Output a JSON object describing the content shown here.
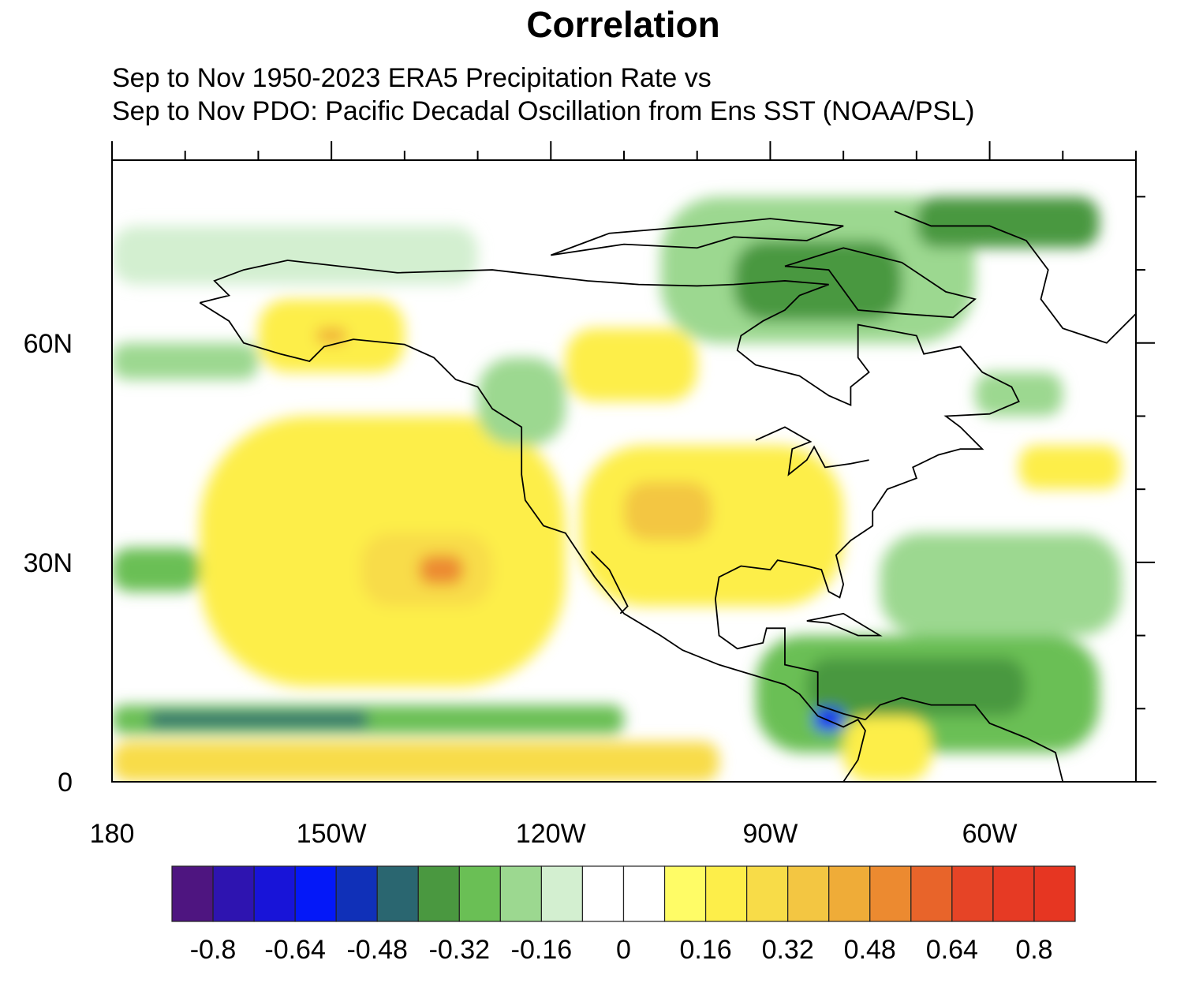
{
  "chart_data": {
    "type": "heatmap",
    "title": "Correlation",
    "subtitle_lines": [
      "Sep to Nov 1950-2023 ERA5 Precipitation Rate vs",
      "Sep to Nov PDO: Pacific Decadal Oscillation from Ens SST (NOAA/PSL)"
    ],
    "lon_range": [
      -180,
      -40
    ],
    "lat_range": [
      0,
      85
    ],
    "x_ticks": [
      {
        "lon": -180,
        "label": "180"
      },
      {
        "lon": -150,
        "label": "150W"
      },
      {
        "lon": -120,
        "label": "120W"
      },
      {
        "lon": -90,
        "label": "90W"
      },
      {
        "lon": -60,
        "label": "60W"
      }
    ],
    "y_ticks": [
      {
        "lat": 60,
        "label": "60N"
      },
      {
        "lat": 30,
        "label": "30N"
      },
      {
        "lat": 0,
        "label": "0"
      }
    ],
    "colorbar": {
      "levels": [
        -0.8,
        -0.72,
        -0.64,
        -0.56,
        -0.48,
        -0.4,
        -0.32,
        -0.24,
        -0.16,
        -0.08,
        0,
        0.08,
        0.16,
        0.24,
        0.32,
        0.4,
        0.48,
        0.56,
        0.64,
        0.72,
        0.8
      ],
      "colors": [
        "#4e1580",
        "#2e14b0",
        "#1814d8",
        "#0418f8",
        "#1030b8",
        "#2a6670",
        "#4a9840",
        "#6abf55",
        "#9cd890",
        "#d3efd0",
        "#ffffff",
        "#ffffff",
        "#fffc66",
        "#fdee4a",
        "#f8dc48",
        "#f3c642",
        "#efac38",
        "#ec8a30",
        "#e8642a",
        "#e64426",
        "#e63a24",
        "#e63622"
      ],
      "labels": [
        "-0.8",
        "-0.64",
        "-0.48",
        "-0.32",
        "-0.16",
        "0",
        "0.16",
        "0.32",
        "0.48",
        "0.64",
        "0.8"
      ]
    },
    "regions": [
      {
        "name": "equatorial-pacific-dry",
        "lon": [
          -180,
          -97
        ],
        "lat": [
          0,
          5.5
        ],
        "value": 0.26
      },
      {
        "name": "itcz-wet",
        "lon": [
          -180,
          -110
        ],
        "lat": [
          6.5,
          10.5
        ],
        "value": -0.3
      },
      {
        "name": "itcz-core",
        "lon": [
          -175,
          -145
        ],
        "lat": [
          7.5,
          9.5
        ],
        "value": -0.42
      },
      {
        "name": "subtropical-pacific",
        "lon": [
          -168,
          -118
        ],
        "lat": [
          13,
          50
        ],
        "value": 0.18
      },
      {
        "name": "subtropical-core",
        "lon": [
          -146,
          -128
        ],
        "lat": [
          24,
          34
        ],
        "value": 0.3
      },
      {
        "name": "subtropical-max",
        "lon": [
          -138,
          -132
        ],
        "lat": [
          27,
          31
        ],
        "value": 0.5
      },
      {
        "name": "conus",
        "lon": [
          -116,
          -80
        ],
        "lat": [
          24,
          46
        ],
        "value": 0.2
      },
      {
        "name": "conus-core",
        "lon": [
          -110,
          -98
        ],
        "lat": [
          33,
          41
        ],
        "value": 0.32
      },
      {
        "name": "alaska-gulf",
        "lon": [
          -160,
          -140
        ],
        "lat": [
          56,
          66
        ],
        "value": 0.18
      },
      {
        "name": "alaska-max",
        "lon": [
          -152,
          -148
        ],
        "lat": [
          60,
          62
        ],
        "value": 0.4
      },
      {
        "name": "canada-yellow",
        "lon": [
          -118,
          -100
        ],
        "lat": [
          52,
          62
        ],
        "value": 0.18
      },
      {
        "name": "west-canada-wet",
        "lon": [
          -130,
          -118
        ],
        "lat": [
          46,
          58
        ],
        "value": -0.2
      },
      {
        "name": "arctic-canada",
        "lon": [
          -105,
          -62
        ],
        "lat": [
          60,
          80
        ],
        "value": -0.22
      },
      {
        "name": "arctic-core",
        "lon": [
          -95,
          -72
        ],
        "lat": [
          63,
          74
        ],
        "value": -0.34
      },
      {
        "name": "greenland-wet",
        "lon": [
          -70,
          -45
        ],
        "lat": [
          73,
          80
        ],
        "value": -0.34
      },
      {
        "name": "central-america-wet",
        "lon": [
          -92,
          -45
        ],
        "lat": [
          4,
          20
        ],
        "value": -0.26
      },
      {
        "name": "caribbean-core",
        "lon": [
          -85,
          -55
        ],
        "lat": [
          9,
          17
        ],
        "value": -0.36
      },
      {
        "name": "panama-max",
        "lon": [
          -84,
          -80
        ],
        "lat": [
          7,
          10
        ],
        "value": -0.6
      },
      {
        "name": "atlantic-wet",
        "lon": [
          -75,
          -42
        ],
        "lat": [
          20,
          34
        ],
        "value": -0.22
      },
      {
        "name": "west-pacific-wet",
        "lon": [
          -180,
          -168
        ],
        "lat": [
          26,
          32
        ],
        "value": -0.3
      },
      {
        "name": "north-pacific-wet",
        "lon": [
          -180,
          -160
        ],
        "lat": [
          55,
          60
        ],
        "value": -0.22
      },
      {
        "name": "bering-wet",
        "lon": [
          -180,
          -130
        ],
        "lat": [
          68,
          76
        ],
        "value": -0.14
      },
      {
        "name": "south-america-dry",
        "lon": [
          -80,
          -68
        ],
        "lat": [
          0,
          9
        ],
        "value": 0.2
      },
      {
        "name": "north-atlantic-dry",
        "lon": [
          -56,
          -42
        ],
        "lat": [
          40,
          46
        ],
        "value": 0.18
      },
      {
        "name": "labrador-wet",
        "lon": [
          -62,
          -50
        ],
        "lat": [
          50,
          56
        ],
        "value": -0.18
      }
    ]
  }
}
